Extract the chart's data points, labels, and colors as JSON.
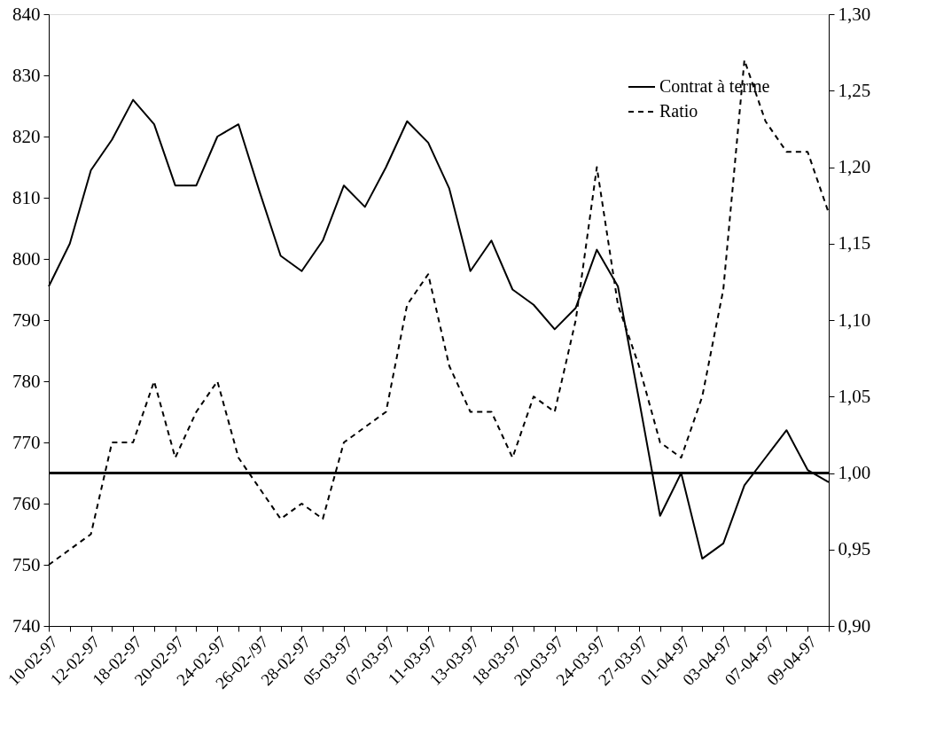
{
  "chart_data": {
    "type": "line",
    "categories": [
      "10-02-97",
      null,
      "12-02-97",
      null,
      "18-02-97",
      null,
      "20-02-97",
      null,
      "24-02-97",
      null,
      "26-02-/97",
      null,
      "28-02-97",
      null,
      "05-03-97",
      null,
      "07-03-97",
      null,
      "11-03-97",
      null,
      "13-03-97",
      null,
      "18-03-97",
      null,
      "20-03-97",
      null,
      "24-03-97",
      null,
      "27-03-97",
      null,
      "01-04-97",
      null,
      "03-04-97",
      null,
      "07-04-97",
      null,
      "09-04-97",
      null
    ],
    "series": [
      {
        "name": "Contrat à terme",
        "color": "#000000",
        "line_style": "solid",
        "values": [
          795.5,
          802.5,
          814.5,
          819.5,
          826,
          822,
          812,
          812,
          820,
          822,
          811,
          800.5,
          798,
          803,
          812,
          808.5,
          815,
          822.5,
          819,
          811.5,
          798,
          803,
          795,
          792.5,
          788.5,
          792,
          801.5,
          795.5,
          777,
          758,
          765,
          751,
          753.5,
          763,
          767.5,
          772,
          765.5,
          763.5
        ]
      },
      {
        "name": "Ratio",
        "color": "#000000",
        "line_style": "dashed",
        "axis": "y2",
        "values": [
          0.94,
          0.95,
          0.96,
          1.02,
          1.02,
          1.06,
          1.01,
          1.04,
          1.06,
          1.01,
          0.99,
          0.97,
          0.98,
          0.97,
          1.02,
          1.03,
          1.04,
          1.11,
          1.13,
          1.07,
          1.04,
          1.04,
          1.01,
          1.05,
          1.04,
          1.1,
          1.2,
          1.11,
          1.07,
          1.02,
          1.01,
          1.05,
          1.12,
          1.27,
          1.23,
          1.21,
          1.21,
          1.17
        ]
      }
    ],
    "ylim": [
      740,
      840
    ],
    "yticks": [
      740,
      750,
      760,
      770,
      780,
      790,
      800,
      810,
      820,
      830,
      840
    ],
    "y2lim": [
      0.9,
      1.3
    ],
    "y2ticks": [
      {
        "value": 0.9,
        "label": "0,90"
      },
      {
        "value": 0.95,
        "label": "0,95"
      },
      {
        "value": 1.0,
        "label": "1,00"
      },
      {
        "value": 1.05,
        "label": "1,05"
      },
      {
        "value": 1.1,
        "label": "1,10"
      },
      {
        "value": 1.15,
        "label": "1,15"
      },
      {
        "value": 1.2,
        "label": "1,20"
      },
      {
        "value": 1.25,
        "label": "1,25"
      },
      {
        "value": 1.3,
        "label": "1,30"
      }
    ],
    "ref_lines": [
      {
        "axis": "y2",
        "value": 1.0,
        "color": "#000000",
        "line_style": "solid"
      }
    ],
    "grid": false,
    "legend": "top right"
  }
}
